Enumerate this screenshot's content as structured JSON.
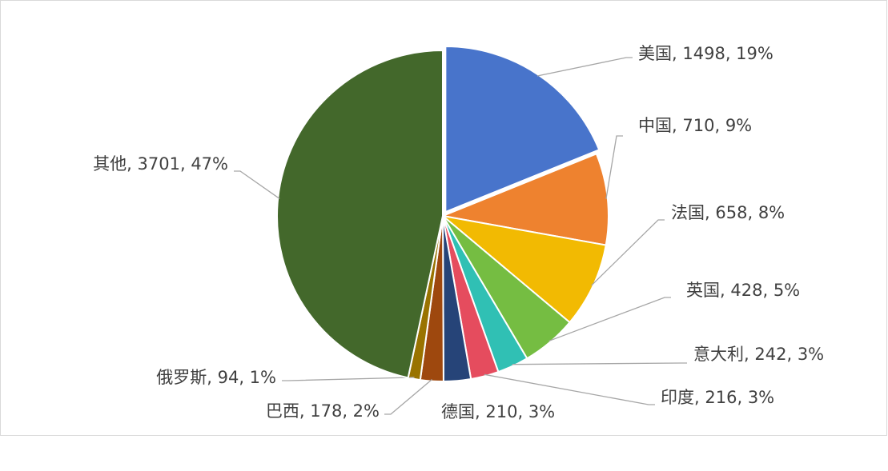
{
  "chart_data": {
    "type": "pie",
    "categories": [
      "美国",
      "中国",
      "法国",
      "英国",
      "意大利",
      "印度",
      "德国",
      "巴西",
      "俄罗斯",
      "其他"
    ],
    "values": [
      1498,
      710,
      658,
      428,
      242,
      216,
      210,
      178,
      94,
      3701
    ],
    "percent_labels": [
      "19%",
      "9%",
      "8%",
      "5%",
      "3%",
      "3%",
      "3%",
      "2%",
      "1%",
      "47%"
    ],
    "colors": [
      "#4874cb",
      "#ee822f",
      "#f2ba02",
      "#75bd42",
      "#30c0b4",
      "#e54c5e",
      "#264478",
      "#9e480e",
      "#997300",
      "#43682b"
    ]
  }
}
